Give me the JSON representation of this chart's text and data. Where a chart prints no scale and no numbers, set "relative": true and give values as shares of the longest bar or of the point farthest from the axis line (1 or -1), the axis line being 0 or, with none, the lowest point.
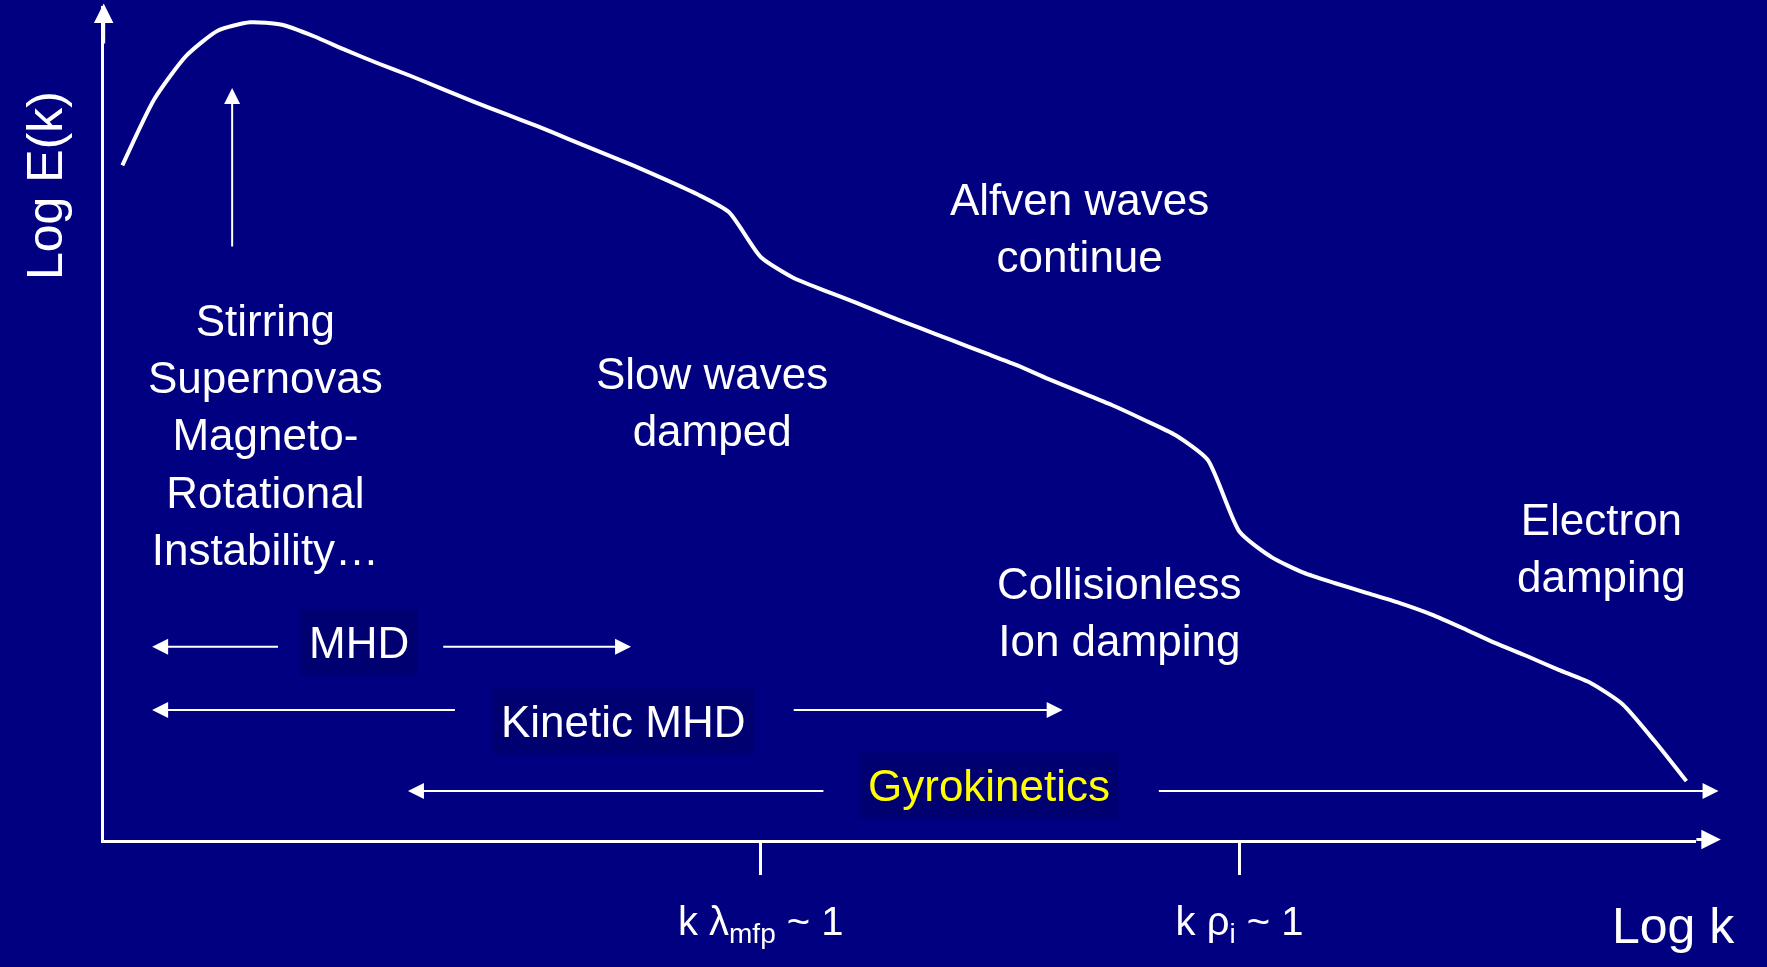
{
  "chart_data": {
    "type": "line",
    "relative": true,
    "xlabel": "Log k",
    "ylabel": "Log E(k)",
    "categories": [
      null,
      null,
      null,
      null,
      null,
      null,
      null,
      null,
      null,
      null,
      null,
      null,
      null,
      null,
      null,
      null,
      null,
      null,
      null,
      null,
      "k λ$_{mfp}$ ~ 1",
      null,
      null,
      null,
      null,
      null,
      null,
      null,
      null,
      null,
      null,
      null,
      null,
      null,
      null,
      "k ρ$_{i}$ ~ 1",
      null,
      null,
      null,
      null,
      null,
      null,
      null,
      null,
      null,
      null,
      null,
      null,
      null,
      null
    ],
    "series": [
      {
        "color": "#ffffff",
        "values": [
          0.825,
          0.906,
          0.959,
          0.99,
          1,
          0.997,
          0.983,
          0.966,
          0.95,
          0.935,
          0.919,
          0.903,
          0.888,
          0.873,
          0.857,
          0.841,
          0.825,
          0.808,
          0.79,
          0.768,
          0.713,
          0.688,
          0.672,
          0.657,
          0.641,
          0.626,
          0.611,
          0.596,
          0.581,
          0.564,
          0.548,
          0.532,
          0.514,
          0.495,
          0.465,
          0.377,
          0.346,
          0.327,
          0.314,
          0.302,
          0.29,
          0.276,
          0.259,
          0.241,
          0.225,
          0.208,
          0.192,
          0.166,
          0.121,
          0.072
        ]
      }
    ],
    "line_style": "solid",
    "annotations": [
      "Stirring\nSupernovas\nMagneto-\nRotational\nInstability…",
      "Slow waves\ndamped",
      "Alfven waves\ncontinue",
      "Collisionless\nIon damping",
      "Electron\ndamping",
      "MHD",
      "Kinetic MHD",
      "Gyrokinetics"
    ]
  }
}
